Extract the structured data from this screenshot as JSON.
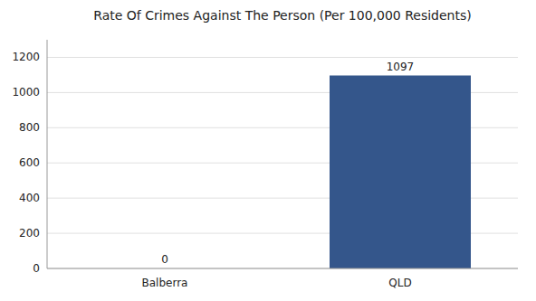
{
  "chart_data": {
    "type": "bar",
    "title": "Rate Of Crimes Against The Person (Per 100,000 Residents)",
    "categories": [
      "Balberra",
      "QLD"
    ],
    "values": [
      0,
      1097
    ],
    "color": "#34568b",
    "ylim": [
      0,
      1300
    ],
    "yticks": [
      0,
      200,
      400,
      600,
      800,
      1000,
      1200
    ],
    "grid": true,
    "data_labels": true
  }
}
